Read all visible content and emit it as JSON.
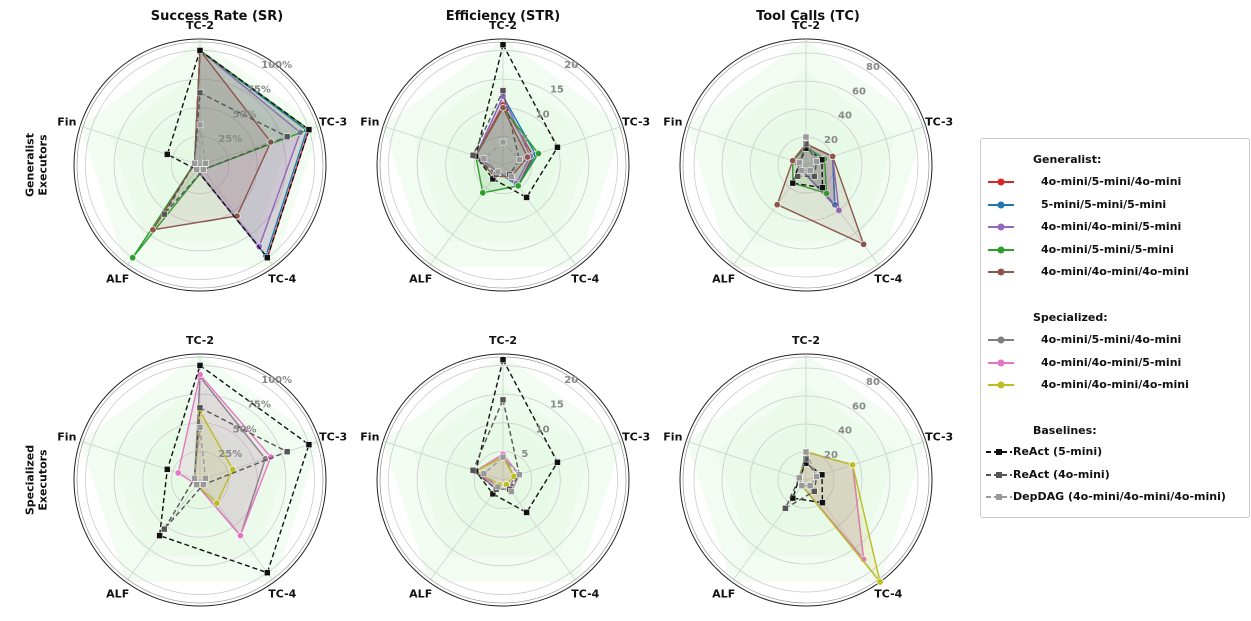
{
  "column_titles": [
    "Success Rate (SR)",
    "Efficiency (STR)",
    "Tool Calls (TC)"
  ],
  "row_labels": [
    "Generalist Executors",
    "Specialized Executors"
  ],
  "axes": [
    "TC-2",
    "TC-3",
    "TC-4",
    "ALF",
    "Fin"
  ],
  "legend": {
    "generalist_title": "Generalist:",
    "specialized_title": "Specialized:",
    "baselines_title": "Baselines:",
    "generalist": [
      {
        "label": "4o-mini/5-mini/4o-mini",
        "color": "#d62728"
      },
      {
        "label": "5-mini/5-mini/5-mini",
        "color": "#1f77b4"
      },
      {
        "label": "4o-mini/4o-mini/5-mini",
        "color": "#9467bd"
      },
      {
        "label": "4o-mini/5-mini/5-mini",
        "color": "#2ca02c"
      },
      {
        "label": "4o-mini/4o-mini/4o-mini",
        "color": "#8c564b"
      }
    ],
    "specialized": [
      {
        "label": "4o-mini/5-mini/4o-mini",
        "color": "#7f7f7f"
      },
      {
        "label": "4o-mini/4o-mini/5-mini",
        "color": "#e377c2"
      },
      {
        "label": "4o-mini/4o-mini/4o-mini",
        "color": "#bcbd22"
      }
    ],
    "baselines": [
      {
        "label": "ReAct (5-mini)",
        "color": "#111111"
      },
      {
        "label": "ReAct (4o-mini)",
        "color": "#555555"
      },
      {
        "label": "DepDAG (4o-mini/4o-mini/4o-mini)",
        "color": "#999999"
      }
    ]
  },
  "chart_data": [
    {
      "type": "radar",
      "row": 0,
      "col": 0,
      "title": "Success Rate (SR)",
      "max": 110,
      "ticks": [
        {
          "v": 25,
          "label": "25%"
        },
        {
          "v": 50,
          "label": "50%"
        },
        {
          "v": 75,
          "label": "75%"
        },
        {
          "v": 100,
          "label": "100%"
        }
      ],
      "series": [
        {
          "name": "4o-mini/5-mini/4o-mini",
          "group": "generalist",
          "color": "#d62728",
          "values": [
            100,
            100,
            100,
            5,
            5
          ]
        },
        {
          "name": "5-mini/5-mini/5-mini",
          "group": "generalist",
          "color": "#1f77b4",
          "values": [
            100,
            98,
            98,
            5,
            5
          ]
        },
        {
          "name": "4o-mini/4o-mini/5-mini",
          "group": "generalist",
          "color": "#9467bd",
          "values": [
            100,
            92,
            88,
            5,
            5
          ]
        },
        {
          "name": "4o-mini/5-mini/5-mini",
          "group": "generalist",
          "color": "#2ca02c",
          "values": [
            100,
            100,
            5,
            100,
            5
          ]
        },
        {
          "name": "4o-mini/4o-mini/4o-mini",
          "group": "generalist",
          "color": "#8c564b",
          "values": [
            100,
            65,
            55,
            70,
            5
          ]
        },
        {
          "name": "ReAct (5-mini)",
          "group": "baseline",
          "color": "#111111",
          "values": [
            100,
            100,
            100,
            5,
            30
          ]
        },
        {
          "name": "ReAct (4o-mini)",
          "group": "baseline",
          "color": "#555555",
          "values": [
            63,
            80,
            5,
            53,
            5
          ]
        },
        {
          "name": "DepDAG (4o-mini/4o-mini/4o-mini)",
          "group": "baseline",
          "color": "#999999",
          "values": [
            35,
            5,
            5,
            5,
            5
          ]
        }
      ]
    },
    {
      "type": "radar",
      "row": 0,
      "col": 1,
      "title": "Efficiency (STR)",
      "max": 22,
      "ticks": [
        {
          "v": 5,
          "label": "5"
        },
        {
          "v": 10,
          "label": "10"
        },
        {
          "v": 15,
          "label": "15"
        },
        {
          "v": 20,
          "label": "20"
        }
      ],
      "series": [
        {
          "name": "4o-mini/5-mini/4o-mini",
          "group": "generalist",
          "color": "#d62728",
          "values": [
            10.5,
            5.5,
            4.5,
            1.5,
            5
          ]
        },
        {
          "name": "5-mini/5-mini/5-mini",
          "group": "generalist",
          "color": "#1f77b4",
          "values": [
            12,
            6,
            4.5,
            1.5,
            5
          ]
        },
        {
          "name": "4o-mini/4o-mini/5-mini",
          "group": "generalist",
          "color": "#9467bd",
          "values": [
            12,
            5,
            4,
            1.5,
            5
          ]
        },
        {
          "name": "4o-mini/5-mini/5-mini",
          "group": "generalist",
          "color": "#2ca02c",
          "values": [
            10,
            6.5,
            4.5,
            6,
            5
          ]
        },
        {
          "name": "4o-mini/4o-mini/4o-mini",
          "group": "generalist",
          "color": "#8c564b",
          "values": [
            10,
            4.5,
            2.5,
            2.5,
            5
          ]
        },
        {
          "name": "ReAct (5-mini)",
          "group": "baseline",
          "color": "#111111",
          "values": [
            21,
            10,
            7,
            3,
            5
          ]
        },
        {
          "name": "ReAct (4o-mini)",
          "group": "baseline",
          "color": "#555555",
          "values": [
            13,
            3,
            2,
            2,
            5.5
          ]
        },
        {
          "name": "DepDAG (4o-mini/4o-mini/4o-mini)",
          "group": "baseline",
          "color": "#999999",
          "values": [
            4,
            3,
            2.5,
            1.5,
            3.5
          ]
        }
      ]
    },
    {
      "type": "radar",
      "row": 0,
      "col": 2,
      "title": "Tool Calls (TC)",
      "max": 90,
      "ticks": [
        {
          "v": 20,
          "label": "20"
        },
        {
          "v": 40,
          "label": "40"
        },
        {
          "v": 60,
          "label": "60"
        },
        {
          "v": 80,
          "label": "80"
        }
      ],
      "series": [
        {
          "name": "4o-mini/5-mini/4o-mini",
          "group": "generalist",
          "color": "#d62728",
          "values": [
            15,
            20,
            35,
            5,
            10
          ]
        },
        {
          "name": "5-mini/5-mini/5-mini",
          "group": "generalist",
          "color": "#1f77b4",
          "values": [
            15,
            20,
            35,
            5,
            10
          ]
        },
        {
          "name": "4o-mini/4o-mini/5-mini",
          "group": "generalist",
          "color": "#9467bd",
          "values": [
            15,
            20,
            40,
            5,
            10
          ]
        },
        {
          "name": "4o-mini/5-mini/5-mini",
          "group": "generalist",
          "color": "#2ca02c",
          "values": [
            13,
            14,
            25,
            16,
            10
          ]
        },
        {
          "name": "4o-mini/4o-mini/4o-mini",
          "group": "generalist",
          "color": "#8c564b",
          "values": [
            15,
            20,
            70,
            35,
            10
          ]
        },
        {
          "name": "ReAct (5-mini)",
          "group": "baseline",
          "color": "#111111",
          "values": [
            12,
            12,
            20,
            16,
            5
          ]
        },
        {
          "name": "ReAct (4o-mini)",
          "group": "baseline",
          "color": "#555555",
          "values": [
            15,
            8,
            10,
            10,
            5
          ]
        },
        {
          "name": "DepDAG (4o-mini/4o-mini/4o-mini)",
          "group": "baseline",
          "color": "#999999",
          "values": [
            20,
            8,
            5,
            5,
            5
          ]
        }
      ]
    },
    {
      "type": "radar",
      "row": 1,
      "col": 0,
      "title": "",
      "max": 110,
      "ticks": [
        {
          "v": 25,
          "label": "25%"
        },
        {
          "v": 50,
          "label": "50%"
        },
        {
          "v": 75,
          "label": "75%"
        },
        {
          "v": 100,
          "label": "100%"
        }
      ],
      "series": [
        {
          "name": "4o-mini/5-mini/4o-mini",
          "group": "specialized",
          "color": "#7f7f7f",
          "values": [
            90,
            60,
            60,
            5,
            5
          ]
        },
        {
          "name": "4o-mini/4o-mini/5-mini",
          "group": "specialized",
          "color": "#e377c2",
          "values": [
            92,
            65,
            60,
            5,
            20
          ]
        },
        {
          "name": "4o-mini/4o-mini/4o-mini",
          "group": "specialized",
          "color": "#bcbd22",
          "values": [
            60,
            30,
            25,
            5,
            5
          ]
        },
        {
          "name": "ReAct (5-mini)",
          "group": "baseline",
          "color": "#111111",
          "values": [
            100,
            100,
            100,
            60,
            30
          ]
        },
        {
          "name": "ReAct (4o-mini)",
          "group": "baseline",
          "color": "#555555",
          "values": [
            63,
            80,
            5,
            53,
            5
          ]
        },
        {
          "name": "DepDAG (4o-mini/4o-mini/4o-mini)",
          "group": "baseline",
          "color": "#999999",
          "values": [
            46,
            5,
            5,
            5,
            5
          ]
        }
      ]
    },
    {
      "type": "radar",
      "row": 1,
      "col": 1,
      "title": "",
      "max": 22,
      "ticks": [
        {
          "v": 5,
          "label": "5"
        },
        {
          "v": 10,
          "label": "10"
        },
        {
          "v": 15,
          "label": "15"
        },
        {
          "v": 20,
          "label": "20"
        }
      ],
      "series": [
        {
          "name": "4o-mini/5-mini/4o-mini",
          "group": "specialized",
          "color": "#7f7f7f",
          "values": [
            4.5,
            2,
            2,
            2,
            5
          ]
        },
        {
          "name": "4o-mini/4o-mini/5-mini",
          "group": "specialized",
          "color": "#e377c2",
          "values": [
            4.5,
            3,
            2.5,
            1.5,
            5
          ]
        },
        {
          "name": "4o-mini/4o-mini/4o-mini",
          "group": "specialized",
          "color": "#bcbd22",
          "values": [
            4,
            2,
            1,
            1,
            5
          ]
        },
        {
          "name": "ReAct (5-mini)",
          "group": "baseline",
          "color": "#111111",
          "values": [
            21,
            10,
            7,
            3,
            5
          ]
        },
        {
          "name": "ReAct (4o-mini)",
          "group": "baseline",
          "color": "#555555",
          "values": [
            14,
            3,
            2,
            2,
            5.5
          ]
        },
        {
          "name": "DepDAG (4o-mini/4o-mini/4o-mini)",
          "group": "baseline",
          "color": "#999999",
          "values": [
            4,
            3,
            2.5,
            1.5,
            3.5
          ]
        }
      ]
    },
    {
      "type": "radar",
      "row": 1,
      "col": 2,
      "title": "",
      "max": 90,
      "ticks": [
        {
          "v": 20,
          "label": "20"
        },
        {
          "v": 40,
          "label": "40"
        },
        {
          "v": 60,
          "label": "60"
        },
        {
          "v": 80,
          "label": "80"
        }
      ],
      "series": [
        {
          "name": "4o-mini/5-mini/4o-mini",
          "group": "specialized",
          "color": "#7f7f7f",
          "values": [
            20,
            35,
            70,
            5,
            5
          ]
        },
        {
          "name": "4o-mini/4o-mini/5-mini",
          "group": "specialized",
          "color": "#e377c2",
          "values": [
            20,
            35,
            70,
            5,
            5
          ]
        },
        {
          "name": "4o-mini/4o-mini/4o-mini",
          "group": "specialized",
          "color": "#bcbd22",
          "values": [
            20,
            35,
            90,
            5,
            5
          ]
        },
        {
          "name": "ReAct (5-mini)",
          "group": "baseline",
          "color": "#111111",
          "values": [
            12,
            12,
            20,
            16,
            5
          ]
        },
        {
          "name": "ReAct (4o-mini)",
          "group": "baseline",
          "color": "#555555",
          "values": [
            15,
            8,
            10,
            25,
            5
          ]
        },
        {
          "name": "DepDAG (4o-mini/4o-mini/4o-mini)",
          "group": "baseline",
          "color": "#999999",
          "values": [
            20,
            8,
            5,
            5,
            5
          ]
        }
      ]
    }
  ]
}
